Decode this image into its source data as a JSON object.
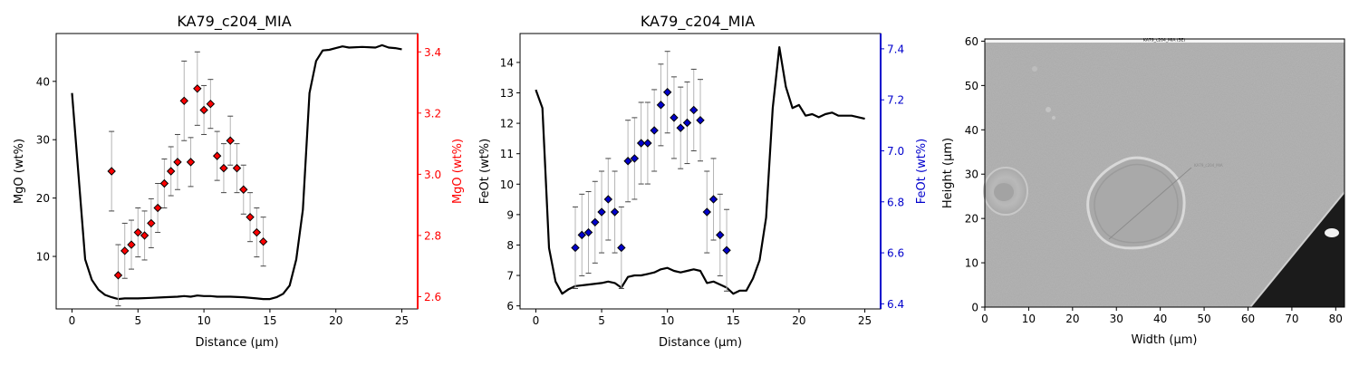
{
  "figure": {
    "background": "#ffffff"
  },
  "chart_data": [
    {
      "type": "line",
      "title": "KA79_c204_MIA",
      "xlabel": "Distance (µm)",
      "ylabel": "MgO (wt%)",
      "ylabel_right": "MgO (wt%)",
      "xlim": [
        -1.2,
        26.2
      ],
      "ylim": [
        1.0,
        48.2
      ],
      "ylim_right": [
        2.56,
        3.46
      ],
      "xticks": [
        0,
        5,
        10,
        15,
        20,
        25
      ],
      "yticks": [
        10,
        20,
        30,
        40
      ],
      "yticks_right": [
        2.6,
        2.8,
        3.0,
        3.2,
        3.4
      ],
      "right_axis_color": "#ff0000",
      "marker_color": "#ff0000",
      "profile": {
        "x": [
          0,
          1,
          1.5,
          2,
          2.5,
          3,
          3.5,
          4,
          5,
          6,
          7,
          8,
          8.5,
          9,
          9.5,
          10,
          10.5,
          11,
          12,
          13,
          14,
          14.5,
          15,
          15.5,
          16,
          16.5,
          17,
          17.5,
          18,
          18.5,
          19,
          19.5,
          20,
          20.5,
          21,
          22,
          23,
          23.5,
          24,
          24.5,
          25
        ],
        "y": [
          38.0,
          9.5,
          6.0,
          4.3,
          3.4,
          3.0,
          2.7,
          2.8,
          2.8,
          2.9,
          3.0,
          3.1,
          3.2,
          3.1,
          3.3,
          3.2,
          3.2,
          3.1,
          3.1,
          3.0,
          2.8,
          2.7,
          2.7,
          3.0,
          3.6,
          5.0,
          9.5,
          18.0,
          38.0,
          43.5,
          45.3,
          45.4,
          45.7,
          46.0,
          45.8,
          45.9,
          45.8,
          46.2,
          45.8,
          45.7,
          45.5
        ]
      },
      "points": {
        "x": [
          3.0,
          3.5,
          4.0,
          4.5,
          5.0,
          5.5,
          6.0,
          6.5,
          7.0,
          7.5,
          8.0,
          8.5,
          9.0,
          9.5,
          10.0,
          10.5,
          11.0,
          11.5,
          12.0,
          12.5,
          13.0,
          13.5,
          14.0,
          14.5
        ],
        "y": [
          3.01,
          2.67,
          2.75,
          2.77,
          2.81,
          2.8,
          2.84,
          2.89,
          2.97,
          3.01,
          3.04,
          3.24,
          3.04,
          3.28,
          3.21,
          3.23,
          3.06,
          3.02,
          3.11,
          3.02,
          2.95,
          2.86,
          2.81,
          2.78
        ],
        "err": [
          0.13,
          0.1,
          0.09,
          0.08,
          0.08,
          0.08,
          0.08,
          0.08,
          0.08,
          0.08,
          0.09,
          0.13,
          0.08,
          0.12,
          0.08,
          0.08,
          0.08,
          0.08,
          0.08,
          0.08,
          0.08,
          0.08,
          0.08,
          0.08
        ]
      }
    },
    {
      "type": "line",
      "title": "KA79_c204_MIA",
      "xlabel": "Distance (µm)",
      "ylabel": "FeOt (wt%)",
      "ylabel_right": "FeOt (wt%)",
      "xlim": [
        -1.2,
        26.2
      ],
      "ylim": [
        5.9,
        14.95
      ],
      "ylim_right": [
        6.38,
        7.46
      ],
      "xticks": [
        0,
        5,
        10,
        15,
        20,
        25
      ],
      "yticks": [
        6,
        7,
        8,
        9,
        10,
        11,
        12,
        13,
        14
      ],
      "yticks_right": [
        6.4,
        6.6,
        6.8,
        7.0,
        7.2,
        7.4
      ],
      "right_axis_color": "#0000cc",
      "marker_color": "#0000cc",
      "profile": {
        "x": [
          0,
          0.5,
          1,
          1.5,
          2,
          2.5,
          3,
          4,
          5,
          5.5,
          6,
          6.5,
          7,
          7.5,
          8,
          8.5,
          9,
          9.5,
          10,
          10.5,
          11,
          11.5,
          12,
          12.5,
          13,
          13.5,
          14,
          14.5,
          15,
          15.5,
          16,
          16.5,
          17,
          17.5,
          18,
          18.5,
          19,
          19.5,
          20,
          20.5,
          21,
          21.5,
          22,
          22.5,
          23,
          24,
          25
        ],
        "y": [
          13.1,
          12.5,
          7.9,
          6.8,
          6.4,
          6.55,
          6.65,
          6.7,
          6.75,
          6.8,
          6.75,
          6.6,
          6.95,
          7.0,
          7.0,
          7.05,
          7.1,
          7.2,
          7.25,
          7.15,
          7.1,
          7.15,
          7.2,
          7.15,
          6.75,
          6.8,
          6.7,
          6.6,
          6.4,
          6.5,
          6.5,
          6.9,
          7.5,
          8.9,
          12.5,
          14.5,
          13.2,
          12.5,
          12.6,
          12.25,
          12.3,
          12.2,
          12.3,
          12.35,
          12.25,
          12.25,
          12.15
        ]
      },
      "points": {
        "x": [
          3.0,
          3.5,
          4.0,
          4.5,
          5.0,
          5.5,
          6.0,
          6.5,
          7.0,
          7.5,
          8.0,
          8.5,
          9.0,
          9.5,
          10.0,
          10.5,
          11.0,
          11.5,
          12.0,
          12.5,
          13.0,
          13.5,
          14.0,
          14.5
        ],
        "y": [
          6.62,
          6.67,
          6.68,
          6.72,
          6.76,
          6.81,
          6.76,
          6.62,
          6.96,
          6.97,
          7.03,
          7.03,
          7.08,
          7.18,
          7.23,
          7.13,
          7.09,
          7.11,
          7.16,
          7.12,
          6.76,
          6.81,
          6.67,
          6.61
        ],
        "err": [
          0.16,
          0.16,
          0.16,
          0.16,
          0.16,
          0.16,
          0.16,
          0.16,
          0.16,
          0.16,
          0.16,
          0.16,
          0.16,
          0.16,
          0.16,
          0.16,
          0.16,
          0.16,
          0.16,
          0.16,
          0.16,
          0.16,
          0.16,
          0.16
        ]
      }
    },
    {
      "type": "image",
      "title": "KA79_c204_MIA (SE)",
      "xlabel": "Width (µm)",
      "ylabel": "Height (µm)",
      "xlim": [
        0,
        82
      ],
      "ylim": [
        0,
        60.5
      ],
      "xticks": [
        0,
        10,
        20,
        30,
        40,
        50,
        60,
        70,
        80
      ],
      "yticks": [
        0,
        10,
        20,
        30,
        40,
        50,
        60
      ]
    }
  ]
}
